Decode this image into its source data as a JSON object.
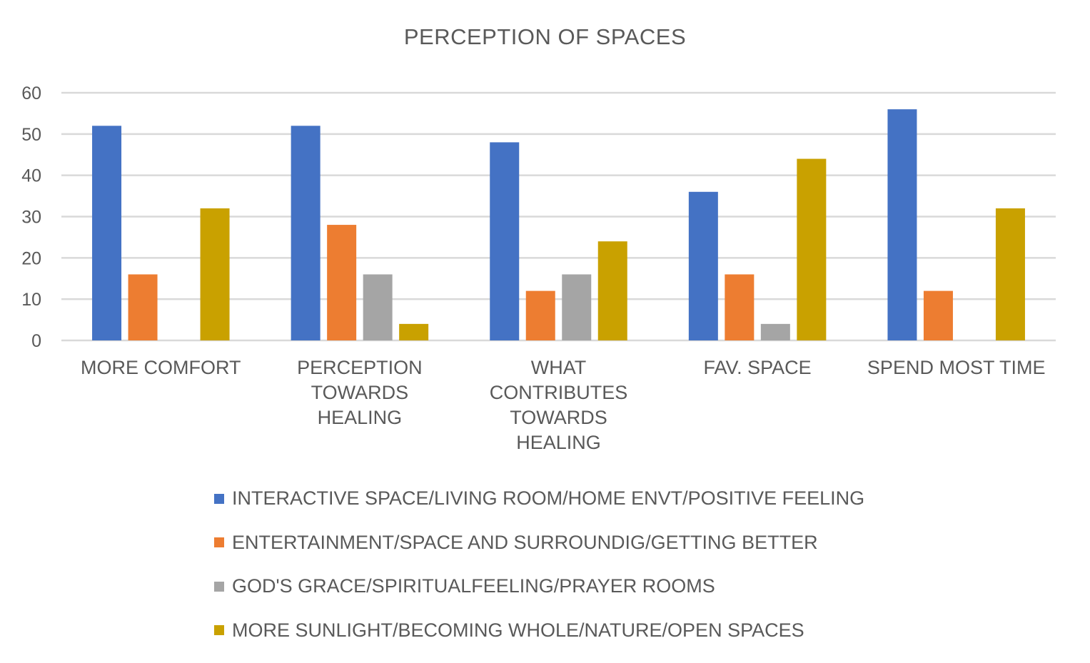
{
  "chart_data": {
    "type": "bar",
    "title": "PERCEPTION OF SPACES",
    "categories": [
      "MORE COMFORT",
      "PERCEPTION TOWARDS HEALING",
      "WHAT CONTRIBUTES TOWARDS HEALING",
      "FAV. SPACE",
      "SPEND MOST TIME"
    ],
    "category_label_lines": [
      [
        "MORE COMFORT"
      ],
      [
        "PERCEPTION",
        "TOWARDS",
        "HEALING"
      ],
      [
        "WHAT",
        "CONTRIBUTES",
        "TOWARDS",
        "HEALING"
      ],
      [
        "FAV. SPACE"
      ],
      [
        "SPEND MOST TIME"
      ]
    ],
    "series": [
      {
        "name": "INTERACTIVE SPACE/LIVING ROOM/HOME ENVT/POSITIVE FEELING",
        "color": "#4472C4",
        "values": [
          52,
          52,
          48,
          36,
          56
        ]
      },
      {
        "name": "ENTERTAINMENT/SPACE AND SURROUNDIG/GETTING BETTER",
        "color": "#ED7D31",
        "values": [
          16,
          28,
          12,
          16,
          12
        ]
      },
      {
        "name": "GOD'S GRACE/SPIRITUALFEELING/PRAYER ROOMS",
        "color": "#A5A5A5",
        "values": [
          0,
          16,
          16,
          4,
          0
        ]
      },
      {
        "name": "MORE SUNLIGHT/BECOMING WHOLE/NATURE/OPEN SPACES",
        "color": "#C9A100",
        "values": [
          32,
          4,
          24,
          44,
          32
        ]
      }
    ],
    "ylim": [
      0,
      60
    ],
    "yticks": [
      0,
      10,
      20,
      30,
      40,
      50,
      60
    ],
    "xlabel": "",
    "ylabel": "",
    "grid": true,
    "legend_position": "bottom"
  }
}
